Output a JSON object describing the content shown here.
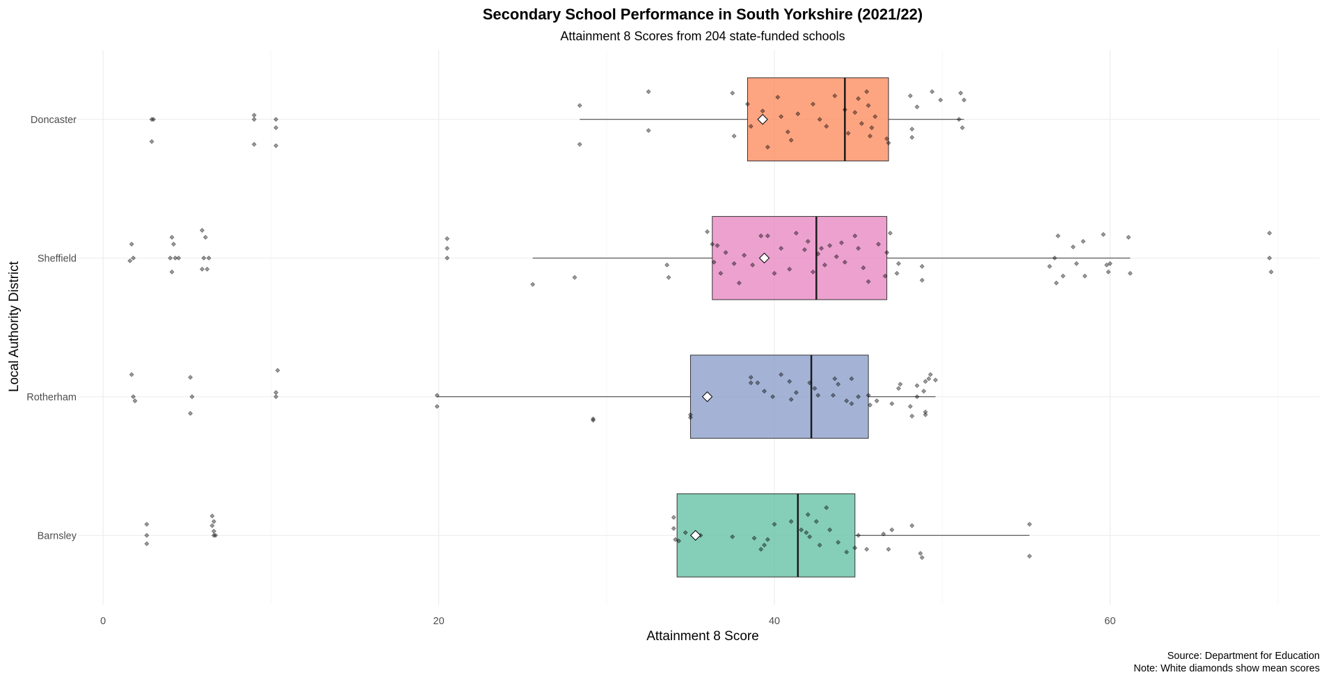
{
  "chart_data": {
    "type": "boxplot",
    "title": "Secondary School Performance in South Yorkshire (2021/22)",
    "subtitle": "Attainment 8 Scores from 204 state-funded schools",
    "xlabel": "Attainment 8 Score",
    "ylabel": "Local Authority District",
    "xlim": [
      -1.5,
      72.5
    ],
    "x_ticks": [
      0,
      20,
      40,
      60
    ],
    "x_tick_labels": [
      "0",
      "20",
      "40",
      "60"
    ],
    "grid": true,
    "orientation": "horizontal",
    "categories": [
      "Doncaster",
      "Sheffield",
      "Rotherham",
      "Barnsley"
    ],
    "series": [
      {
        "category": "Doncaster",
        "color": "#fc8d62",
        "q1": 38.4,
        "median": 44.2,
        "q3": 46.8,
        "whisker_low": 28.4,
        "whisker_high": 51.3,
        "mean": 39.3,
        "points": [
          [
            2.9,
            0.0
          ],
          [
            3.0,
            0.0
          ],
          [
            2.9,
            -0.16
          ],
          [
            9.0,
            0.03
          ],
          [
            9.0,
            0.0
          ],
          [
            9.0,
            -0.18
          ],
          [
            10.3,
            0.0
          ],
          [
            10.3,
            -0.06
          ],
          [
            10.3,
            -0.19
          ],
          [
            28.4,
            0.1
          ],
          [
            28.4,
            -0.18
          ],
          [
            32.5,
            0.2
          ],
          [
            32.5,
            -0.08
          ],
          [
            37.5,
            0.19
          ],
          [
            37.6,
            -0.12
          ],
          [
            38.4,
            0.11
          ],
          [
            38.6,
            -0.05
          ],
          [
            39.3,
            0.06
          ],
          [
            39.6,
            -0.2
          ],
          [
            40.2,
            0.16
          ],
          [
            40.4,
            0.02
          ],
          [
            40.8,
            -0.09
          ],
          [
            41.0,
            -0.15
          ],
          [
            41.4,
            0.04
          ],
          [
            42.3,
            0.11
          ],
          [
            42.7,
            0.0
          ],
          [
            43.1,
            -0.05
          ],
          [
            43.6,
            0.17
          ],
          [
            44.2,
            0.07
          ],
          [
            44.4,
            -0.1
          ],
          [
            44.8,
            0.05
          ],
          [
            45.0,
            0.15
          ],
          [
            45.2,
            -0.03
          ],
          [
            45.5,
            0.2
          ],
          [
            45.6,
            0.1
          ],
          [
            45.7,
            -0.12
          ],
          [
            45.8,
            -0.06
          ],
          [
            46.0,
            0.02
          ],
          [
            46.7,
            -0.14
          ],
          [
            46.8,
            -0.17
          ],
          [
            48.1,
            0.17
          ],
          [
            48.2,
            -0.07
          ],
          [
            48.2,
            -0.13
          ],
          [
            48.5,
            0.09
          ],
          [
            49.4,
            0.2
          ],
          [
            49.9,
            0.14
          ],
          [
            51.1,
            0.19
          ],
          [
            51.2,
            -0.06
          ],
          [
            51.3,
            0.14
          ],
          [
            51.0,
            0.0
          ]
        ]
      },
      {
        "category": "Sheffield",
        "color": "#e78ac3",
        "q1": 36.3,
        "median": 42.5,
        "q3": 46.7,
        "whisker_low": 25.6,
        "whisker_high": 61.2,
        "mean": 39.4,
        "points": [
          [
            1.7,
            0.1
          ],
          [
            1.8,
            0.0
          ],
          [
            1.6,
            -0.02
          ],
          [
            4.1,
            0.15
          ],
          [
            4.2,
            0.1
          ],
          [
            4.0,
            0.0
          ],
          [
            4.3,
            0.0
          ],
          [
            4.5,
            0.0
          ],
          [
            4.1,
            -0.1
          ],
          [
            5.9,
            0.2
          ],
          [
            6.1,
            0.15
          ],
          [
            6.0,
            0.0
          ],
          [
            6.3,
            0.0
          ],
          [
            5.9,
            -0.08
          ],
          [
            6.2,
            -0.08
          ],
          [
            20.5,
            0.14
          ],
          [
            20.5,
            0.07
          ],
          [
            20.5,
            0.0
          ],
          [
            25.6,
            -0.19
          ],
          [
            28.1,
            -0.14
          ],
          [
            33.6,
            -0.05
          ],
          [
            33.7,
            -0.14
          ],
          [
            36.0,
            0.19
          ],
          [
            36.3,
            0.1
          ],
          [
            36.4,
            -0.03
          ],
          [
            36.6,
            0.09
          ],
          [
            36.8,
            -0.11
          ],
          [
            37.1,
            0.04
          ],
          [
            37.6,
            -0.04
          ],
          [
            37.9,
            -0.18
          ],
          [
            38.2,
            0.02
          ],
          [
            38.7,
            -0.05
          ],
          [
            39.2,
            0.16
          ],
          [
            39.6,
            0.16
          ],
          [
            40.0,
            -0.11
          ],
          [
            40.4,
            0.07
          ],
          [
            40.9,
            -0.08
          ],
          [
            41.3,
            0.18
          ],
          [
            41.8,
            0.06
          ],
          [
            42.0,
            0.12
          ],
          [
            42.3,
            -0.1
          ],
          [
            42.6,
            0.03
          ],
          [
            42.8,
            0.07
          ],
          [
            43.0,
            -0.05
          ],
          [
            43.3,
            0.09
          ],
          [
            43.7,
            0.01
          ],
          [
            44.0,
            0.11
          ],
          [
            44.2,
            -0.03
          ],
          [
            44.8,
            0.16
          ],
          [
            45.0,
            0.07
          ],
          [
            45.3,
            -0.07
          ],
          [
            45.6,
            -0.17
          ],
          [
            46.2,
            0.1
          ],
          [
            46.6,
            -0.13
          ],
          [
            46.9,
            0.18
          ],
          [
            46.7,
            0.04
          ],
          [
            47.3,
            -0.11
          ],
          [
            47.4,
            -0.04
          ],
          [
            48.8,
            -0.16
          ],
          [
            48.8,
            -0.06
          ],
          [
            56.4,
            -0.06
          ],
          [
            56.7,
            0.0
          ],
          [
            56.9,
            0.16
          ],
          [
            57.2,
            -0.13
          ],
          [
            57.8,
            0.08
          ],
          [
            58.0,
            -0.04
          ],
          [
            58.4,
            0.12
          ],
          [
            58.5,
            -0.13
          ],
          [
            59.6,
            0.17
          ],
          [
            59.9,
            -0.1
          ],
          [
            59.8,
            -0.05
          ],
          [
            61.1,
            0.15
          ],
          [
            61.2,
            -0.11
          ],
          [
            56.8,
            -0.18
          ],
          [
            60.0,
            -0.04
          ],
          [
            69.5,
            0.18
          ],
          [
            69.5,
            0.0
          ],
          [
            69.6,
            -0.1
          ]
        ]
      },
      {
        "category": "Rotherham",
        "color": "#8da0cb",
        "q1": 35.0,
        "median": 42.2,
        "q3": 45.6,
        "whisker_low": 19.9,
        "whisker_high": 49.6,
        "mean": 36.0,
        "points": [
          [
            1.7,
            0.16
          ],
          [
            1.8,
            0.0
          ],
          [
            1.9,
            -0.03
          ],
          [
            5.2,
            0.14
          ],
          [
            5.3,
            0.0
          ],
          [
            5.2,
            -0.12
          ],
          [
            10.4,
            0.19
          ],
          [
            10.3,
            0.03
          ],
          [
            10.3,
            0.0
          ],
          [
            19.9,
            0.01
          ],
          [
            19.9,
            -0.07
          ],
          [
            29.2,
            -0.17
          ],
          [
            29.2,
            -0.16
          ],
          [
            35.0,
            -0.13
          ],
          [
            35.0,
            -0.15
          ],
          [
            38.6,
            0.14
          ],
          [
            38.6,
            0.1
          ],
          [
            39.0,
            0.1
          ],
          [
            39.4,
            0.04
          ],
          [
            39.9,
            0.0
          ],
          [
            40.4,
            0.16
          ],
          [
            40.9,
            0.11
          ],
          [
            41.0,
            -0.02
          ],
          [
            41.3,
            0.03
          ],
          [
            42.1,
            0.1
          ],
          [
            42.4,
            0.06
          ],
          [
            42.6,
            0.01
          ],
          [
            43.5,
            0.01
          ],
          [
            43.6,
            0.13
          ],
          [
            43.8,
            0.09
          ],
          [
            44.3,
            -0.03
          ],
          [
            44.6,
            -0.05
          ],
          [
            44.6,
            0.13
          ],
          [
            45.0,
            0.0
          ],
          [
            45.6,
            0.01
          ],
          [
            45.7,
            -0.06
          ],
          [
            46.1,
            -0.03
          ],
          [
            47.0,
            -0.05
          ],
          [
            47.4,
            0.06
          ],
          [
            48.1,
            -0.07
          ],
          [
            48.5,
            0.0
          ],
          [
            48.9,
            0.04
          ],
          [
            49.0,
            0.11
          ],
          [
            49.3,
            0.16
          ],
          [
            49.0,
            -0.11
          ],
          [
            49.6,
            0.12
          ],
          [
            48.5,
            0.08
          ],
          [
            48.2,
            -0.14
          ],
          [
            49.2,
            0.13
          ],
          [
            49.0,
            -0.13
          ],
          [
            47.5,
            0.09
          ]
        ]
      },
      {
        "category": "Barnsley",
        "color": "#66c2a5",
        "q1": 34.2,
        "median": 41.4,
        "q3": 44.8,
        "whisker_low": 34.2,
        "whisker_high": 55.2,
        "mean": 35.3,
        "points": [
          [
            2.6,
            0.08
          ],
          [
            2.6,
            0.0
          ],
          [
            2.6,
            -0.06
          ],
          [
            6.5,
            0.14
          ],
          [
            6.6,
            0.1
          ],
          [
            6.5,
            0.07
          ],
          [
            6.6,
            0.03
          ],
          [
            6.6,
            0.0
          ],
          [
            6.7,
            0.0
          ],
          [
            34.0,
            0.13
          ],
          [
            34.0,
            0.05
          ],
          [
            34.1,
            -0.03
          ],
          [
            34.3,
            -0.04
          ],
          [
            34.7,
            0.02
          ],
          [
            35.6,
            0.0
          ],
          [
            37.5,
            -0.01
          ],
          [
            38.8,
            -0.02
          ],
          [
            39.2,
            -0.1
          ],
          [
            39.4,
            -0.07
          ],
          [
            39.6,
            -0.03
          ],
          [
            40.0,
            0.08
          ],
          [
            41.0,
            0.1
          ],
          [
            41.6,
            0.04
          ],
          [
            41.9,
            0.02
          ],
          [
            42.0,
            0.15
          ],
          [
            42.1,
            -0.01
          ],
          [
            42.5,
            0.1
          ],
          [
            42.7,
            -0.07
          ],
          [
            43.1,
            0.2
          ],
          [
            43.3,
            0.04
          ],
          [
            43.8,
            -0.05
          ],
          [
            44.3,
            -0.12
          ],
          [
            44.8,
            -0.09
          ],
          [
            45.0,
            0.0
          ],
          [
            45.5,
            -0.1
          ],
          [
            46.5,
            0.01
          ],
          [
            46.8,
            -0.1
          ],
          [
            47.0,
            0.04
          ],
          [
            48.2,
            0.07
          ],
          [
            48.7,
            -0.13
          ],
          [
            48.8,
            -0.16
          ],
          [
            55.2,
            0.08
          ],
          [
            55.2,
            -0.15
          ]
        ]
      }
    ],
    "annotations": [
      "Source: Department for Education",
      "Note: White diamonds show mean scores"
    ]
  }
}
